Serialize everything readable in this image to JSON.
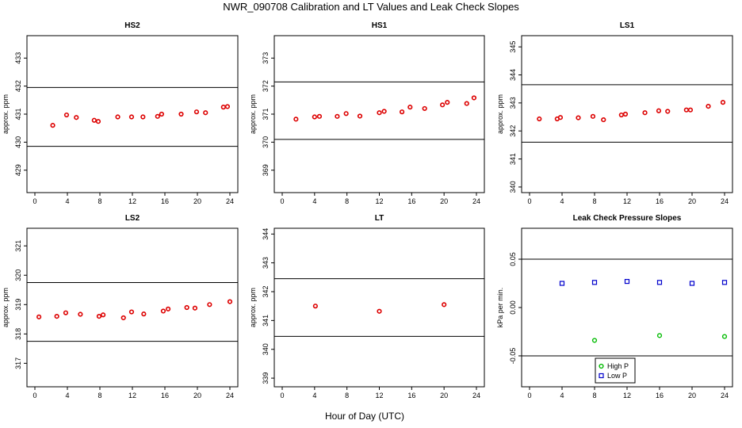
{
  "title": "NWR_090708  Calibration and LT Values and Leak Check Slopes",
  "xlabel": "Hour of Day (UTC)",
  "colors": {
    "points": "#dd0000",
    "high_p": "#00bb00",
    "low_p": "#0000cc",
    "lines": "#000000"
  },
  "chart_data": [
    {
      "type": "scatter",
      "title": "HS2",
      "ylabel": "approx. ppm",
      "xlim": [
        0,
        24
      ],
      "ylim": [
        428.2,
        433.8
      ],
      "xticks": [
        0,
        4,
        8,
        12,
        16,
        20,
        24
      ],
      "yticks": [
        429,
        430,
        431,
        432,
        433
      ],
      "hlines": [
        429.85,
        431.95
      ],
      "x": [
        2.2,
        3.9,
        5.1,
        7.3,
        7.8,
        10.2,
        11.9,
        13.3,
        15.1,
        15.6,
        18.0,
        19.9,
        21.0,
        23.2,
        23.7
      ],
      "y": [
        430.6,
        430.97,
        430.88,
        430.78,
        430.74,
        430.9,
        430.9,
        430.9,
        430.92,
        431.0,
        431.0,
        431.08,
        431.05,
        431.25,
        431.27
      ]
    },
    {
      "type": "scatter",
      "title": "HS1",
      "ylabel": "approx. ppm",
      "xlim": [
        0,
        24
      ],
      "ylim": [
        368.2,
        373.8
      ],
      "xticks": [
        0,
        4,
        8,
        12,
        16,
        20,
        24
      ],
      "yticks": [
        369,
        370,
        371,
        372,
        373
      ],
      "hlines": [
        370.1,
        372.15
      ],
      "x": [
        1.7,
        4.0,
        4.6,
        6.8,
        7.9,
        9.6,
        12.0,
        12.6,
        14.8,
        15.8,
        17.6,
        19.8,
        20.4,
        22.8,
        23.7
      ],
      "y": [
        370.82,
        370.9,
        370.92,
        370.92,
        371.02,
        370.93,
        371.05,
        371.1,
        371.08,
        371.25,
        371.2,
        371.33,
        371.42,
        371.38,
        371.58
      ]
    },
    {
      "type": "scatter",
      "title": "LS1",
      "ylabel": "approx. ppm",
      "xlim": [
        0,
        24
      ],
      "ylim": [
        339.8,
        345.4
      ],
      "xticks": [
        0,
        4,
        8,
        12,
        16,
        20,
        24
      ],
      "yticks": [
        340,
        341,
        342,
        343,
        344,
        345
      ],
      "hlines": [
        341.6,
        343.65
      ],
      "x": [
        1.2,
        3.4,
        3.8,
        6.0,
        7.8,
        9.1,
        11.3,
        11.8,
        14.2,
        15.9,
        17.0,
        19.3,
        19.8,
        22.0,
        23.8
      ],
      "y": [
        342.43,
        342.43,
        342.48,
        342.47,
        342.52,
        342.4,
        342.57,
        342.6,
        342.65,
        342.72,
        342.7,
        342.75,
        342.75,
        342.88,
        343.02
      ]
    },
    {
      "type": "scatter",
      "title": "LS2",
      "ylabel": "approx. ppm",
      "xlim": [
        0,
        24
      ],
      "ylim": [
        316.2,
        321.6
      ],
      "xticks": [
        0,
        4,
        8,
        12,
        16,
        20,
        24
      ],
      "yticks": [
        317,
        318,
        319,
        320,
        321
      ],
      "hlines": [
        317.75,
        319.75
      ],
      "x": [
        0.5,
        2.7,
        3.8,
        5.6,
        7.9,
        8.4,
        10.9,
        11.9,
        13.4,
        15.8,
        16.4,
        18.7,
        19.7,
        21.5,
        24.0
      ],
      "y": [
        318.58,
        318.6,
        318.72,
        318.67,
        318.6,
        318.65,
        318.55,
        318.75,
        318.68,
        318.78,
        318.85,
        318.9,
        318.88,
        319.0,
        319.1
      ]
    },
    {
      "type": "scatter",
      "title": "LT",
      "ylabel": "approx. ppm",
      "xlim": [
        0,
        24
      ],
      "ylim": [
        338.7,
        344.2
      ],
      "xticks": [
        0,
        4,
        8,
        12,
        16,
        20,
        24
      ],
      "yticks": [
        339,
        340,
        341,
        342,
        343,
        344
      ],
      "hlines": [
        340.45,
        342.45
      ],
      "x": [
        4.1,
        12.0,
        20.0
      ],
      "y": [
        341.5,
        341.32,
        341.55
      ]
    },
    {
      "type": "scatter",
      "title": "Leak Check Pressure Slopes",
      "ylabel": "kPa per min.",
      "xlim": [
        0,
        24
      ],
      "ylim": [
        -0.082,
        0.082
      ],
      "xticks": [
        0,
        4,
        8,
        12,
        16,
        20,
        24
      ],
      "yticks": [
        -0.05,
        0.0,
        0.05
      ],
      "ytick_labels": [
        "-0.05",
        "0.00",
        "0.05"
      ],
      "hlines": [
        -0.05,
        0.05
      ],
      "legend": {
        "placement": "bottom-center",
        "entries": [
          "High P",
          "Low P"
        ]
      },
      "series": [
        {
          "name": "High P",
          "marker": "circle",
          "x": [
            8,
            16,
            24
          ],
          "y": [
            -0.034,
            -0.029,
            -0.03
          ]
        },
        {
          "name": "Low P",
          "marker": "square",
          "x": [
            4,
            8,
            12,
            16,
            20,
            24
          ],
          "y": [
            0.025,
            0.026,
            0.027,
            0.026,
            0.025,
            0.026
          ]
        }
      ]
    }
  ]
}
